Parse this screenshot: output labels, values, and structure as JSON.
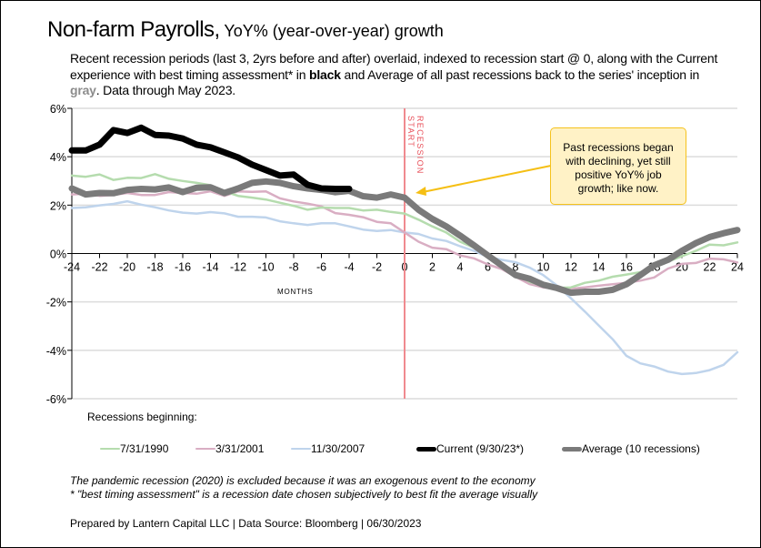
{
  "title": {
    "main": "Non-farm Payrolls,",
    "sub": " YoY% (year-over-year) growth"
  },
  "subtitle": {
    "part1": "Recent recession periods (last 3, 2yrs before and after) overlaid, indexed to recession start @ 0, along with the Current experience with best timing assessment* in ",
    "bold_black": "black",
    "part2": " and Average of all past recessions back to the series' inception in ",
    "bold_gray": "gray",
    "part3": ". Data through May 2023."
  },
  "callout": {
    "line1": "Past recessions began",
    "line2": "with declining, yet still",
    "line3": "positive YoY% job",
    "line4": "growth; like now."
  },
  "recession_marker": {
    "line1": "RECESSION",
    "line2": "START",
    "color": "#f08a8f"
  },
  "legend_title": "Recessions beginning:",
  "notes": {
    "line1": "The pandemic recession (2020) is excluded because it was an exogenous event to the economy",
    "line2": "* \"best timing assessment\" is a recession date chosen subjectively to best fit the average visually"
  },
  "credit": "Prepared by Lantern Capital LLC | Data Source: Bloomberg | 06/30/2023",
  "chart_data": {
    "type": "line",
    "title": "Non-farm Payrolls, YoY% (year-over-year) growth",
    "xlabel": "MONTHS",
    "ylabel": "",
    "xlim": [
      -24,
      24
    ],
    "ylim": [
      -6,
      6
    ],
    "x_ticks": [
      -24,
      -22,
      -20,
      -18,
      -16,
      -14,
      -12,
      -10,
      -8,
      -6,
      -4,
      -2,
      0,
      2,
      4,
      6,
      8,
      10,
      12,
      14,
      16,
      18,
      20,
      22,
      24
    ],
    "y_ticks": [
      6,
      4,
      2,
      0,
      -2,
      -4,
      -6
    ],
    "y_tick_labels": [
      "6%",
      "4%",
      "2%",
      "0%",
      "-2%",
      "-4%",
      "-6%"
    ],
    "grid": "horizontal",
    "legend_position": "bottom",
    "annotations": [
      "RECESSION START at x=0",
      "Past recessions began with declining, yet still positive YoY% job growth; like now."
    ],
    "x": [
      -24,
      -23,
      -22,
      -21,
      -20,
      -19,
      -18,
      -17,
      -16,
      -15,
      -14,
      -13,
      -12,
      -11,
      -10,
      -9,
      -8,
      -7,
      -6,
      -5,
      -4,
      -3,
      -2,
      -1,
      0,
      1,
      2,
      3,
      4,
      5,
      6,
      7,
      8,
      9,
      10,
      11,
      12,
      13,
      14,
      15,
      16,
      17,
      18,
      19,
      20,
      21,
      22,
      23,
      24
    ],
    "series": [
      {
        "name": "7/31/1990",
        "color": "#b5dcae",
        "width": "thin",
        "values": [
          3.22,
          3.17,
          3.27,
          3.04,
          3.13,
          3.12,
          3.28,
          3.09,
          3.0,
          2.92,
          2.82,
          2.57,
          2.38,
          2.31,
          2.23,
          2.1,
          1.97,
          1.81,
          1.9,
          1.88,
          1.88,
          1.78,
          1.81,
          1.72,
          1.65,
          1.4,
          1.12,
          0.87,
          0.49,
          0.24,
          -0.08,
          -0.45,
          -0.83,
          -1.17,
          -1.33,
          -1.42,
          -1.4,
          -1.21,
          -1.12,
          -0.96,
          -0.87,
          -0.77,
          -0.58,
          -0.33,
          -0.11,
          0.11,
          0.37,
          0.34,
          0.46
        ]
      },
      {
        "name": "3/31/2001",
        "color": "#d9aec3",
        "width": "thin",
        "values": [
          2.44,
          2.47,
          2.38,
          2.42,
          2.5,
          2.42,
          2.42,
          2.54,
          2.5,
          2.47,
          2.57,
          2.38,
          2.57,
          2.55,
          2.57,
          2.28,
          2.15,
          2.06,
          1.95,
          1.67,
          1.6,
          1.5,
          1.31,
          1.25,
          0.87,
          0.49,
          0.24,
          0.18,
          -0.08,
          -0.2,
          -0.45,
          -0.64,
          -0.96,
          -1.26,
          -1.4,
          -1.46,
          -1.46,
          -1.4,
          -1.33,
          -1.27,
          -1.21,
          -1.12,
          -0.99,
          -0.62,
          -0.43,
          -0.39,
          -0.21,
          -0.24,
          -0.37
        ]
      },
      {
        "name": "11/30/2007",
        "color": "#bfd4ec",
        "width": "thin",
        "values": [
          1.88,
          1.91,
          1.99,
          2.05,
          2.16,
          2.02,
          1.91,
          1.78,
          1.69,
          1.65,
          1.71,
          1.66,
          1.52,
          1.52,
          1.49,
          1.33,
          1.25,
          1.18,
          1.25,
          1.25,
          1.12,
          0.99,
          0.93,
          0.97,
          0.87,
          0.81,
          0.62,
          0.52,
          0.3,
          0.11,
          -0.14,
          -0.26,
          -0.36,
          -0.58,
          -0.89,
          -1.33,
          -1.85,
          -2.4,
          -2.97,
          -3.54,
          -4.23,
          -4.54,
          -4.67,
          -4.88,
          -4.98,
          -4.94,
          -4.82,
          -4.6,
          -4.08
        ]
      },
      {
        "name": "Current (9/30/23*)",
        "color": "#000000",
        "width": "thick",
        "values": [
          4.26,
          4.26,
          4.5,
          5.1,
          4.98,
          5.2,
          4.9,
          4.87,
          4.75,
          4.5,
          4.39,
          4.18,
          3.97,
          3.67,
          3.45,
          3.22,
          3.26,
          2.84,
          2.69,
          2.67,
          2.67,
          null,
          null,
          null,
          null,
          null,
          null,
          null,
          null,
          null,
          null,
          null,
          null,
          null,
          null,
          null,
          null,
          null,
          null,
          null,
          null,
          null,
          null,
          null,
          null,
          null,
          null,
          null,
          null
        ]
      },
      {
        "name": "Average (10 recessions)",
        "color": "#7a7a7a",
        "width": "thick",
        "values": [
          2.69,
          2.44,
          2.5,
          2.49,
          2.63,
          2.67,
          2.65,
          2.73,
          2.54,
          2.72,
          2.74,
          2.5,
          2.69,
          2.92,
          2.98,
          2.92,
          2.78,
          2.69,
          2.63,
          2.53,
          2.59,
          2.37,
          2.31,
          2.44,
          2.31,
          1.81,
          1.43,
          1.12,
          0.74,
          0.34,
          -0.08,
          -0.49,
          -0.89,
          -1.04,
          -1.29,
          -1.43,
          -1.62,
          -1.58,
          -1.58,
          -1.5,
          -1.27,
          -0.89,
          -0.49,
          -0.26,
          0.11,
          0.43,
          0.68,
          0.84,
          0.97
        ]
      }
    ]
  }
}
